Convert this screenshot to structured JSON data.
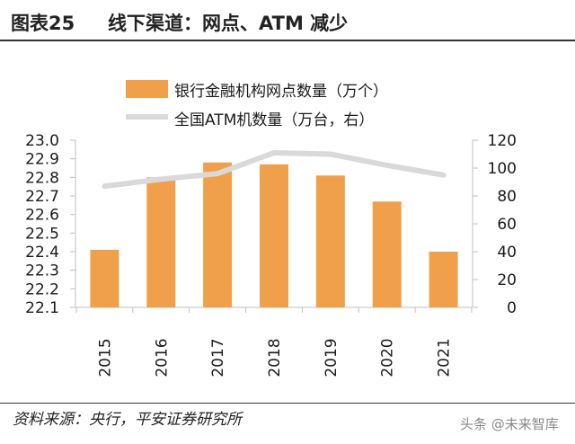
{
  "header": {
    "figure_label": "图表25",
    "title": "线下渠道：网点、ATM 减少"
  },
  "chart_data": {
    "type": "bar",
    "categories": [
      "2015",
      "2016",
      "2017",
      "2018",
      "2019",
      "2020",
      "2021"
    ],
    "series": [
      {
        "name": "银行金融机构网点数量（万个）",
        "type": "bar",
        "axis": "left",
        "values": [
          22.41,
          22.8,
          22.88,
          22.87,
          22.81,
          22.67,
          22.4
        ]
      },
      {
        "name": "全国ATM机数量（万台，右）",
        "type": "line",
        "axis": "right",
        "values": [
          87,
          92,
          96,
          111,
          110,
          102,
          95
        ]
      }
    ],
    "y_left": {
      "min": 22.1,
      "max": 23.0,
      "ticks": [
        "22.1",
        "22.2",
        "22.3",
        "22.4",
        "22.5",
        "22.6",
        "22.7",
        "22.8",
        "22.9",
        "23.0"
      ]
    },
    "y_right": {
      "min": 0,
      "max": 120,
      "ticks": [
        "0",
        "20",
        "40",
        "60",
        "80",
        "100",
        "120"
      ]
    },
    "legend_placement": "top",
    "grid": false,
    "colors": {
      "bar": "#f0a04a",
      "line": "#d9d9d9"
    }
  },
  "footer": {
    "source": "资料来源：央行，平安证券研究所",
    "watermark": "头条 @未来智库"
  }
}
